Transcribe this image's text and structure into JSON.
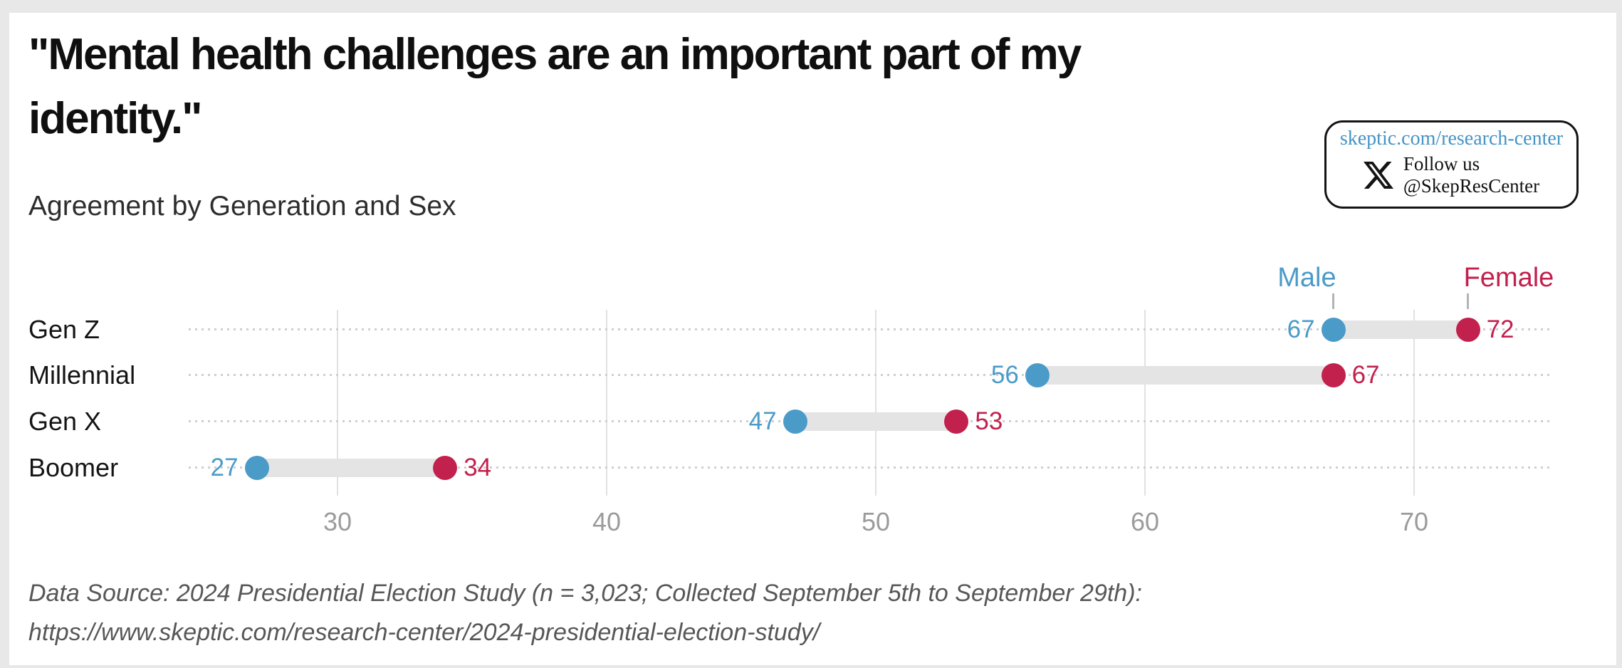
{
  "page": {
    "title_line1": "\"Mental health challenges are an important part of my",
    "title_line2": "identity.\"",
    "subtitle": "Agreement by Generation and Sex"
  },
  "badge": {
    "link": "skeptic.com/research-center",
    "link_color": "#4493c6",
    "x_icon": "x-logo",
    "follow_line1": "Follow us",
    "follow_line2": "@SkepResCenter"
  },
  "footer": {
    "line1": "Data Source: 2024 Presidential Election Study (n = 3,023; Collected September 5th to September 29th):",
    "line2": "https://www.skeptic.com/research-center/2024-presidential-election-study/"
  },
  "chart_data": {
    "type": "dumbbell",
    "title": "\"Mental health challenges are an important part of my identity.\"",
    "subtitle": "Agreement by Generation and Sex",
    "categories": [
      "Gen Z",
      "Millennial",
      "Gen X",
      "Boomer"
    ],
    "series": [
      {
        "name": "Male",
        "color": "#4b9bc9",
        "values": [
          67,
          56,
          47,
          27
        ]
      },
      {
        "name": "Female",
        "color": "#c2204d",
        "values": [
          72,
          67,
          53,
          34
        ]
      }
    ],
    "x_ticks": [
      30,
      40,
      50,
      60,
      70
    ],
    "xlim": [
      24.5,
      75.2
    ],
    "grid": true,
    "legend_position": "top-right, labels anchored above first-row dots",
    "connector_color": "#e4e4e4",
    "row_dotted_line_color": "#cfcfcf",
    "gridline_color": "#e1e1e1",
    "tick_label_color": "#9b9b9b"
  }
}
